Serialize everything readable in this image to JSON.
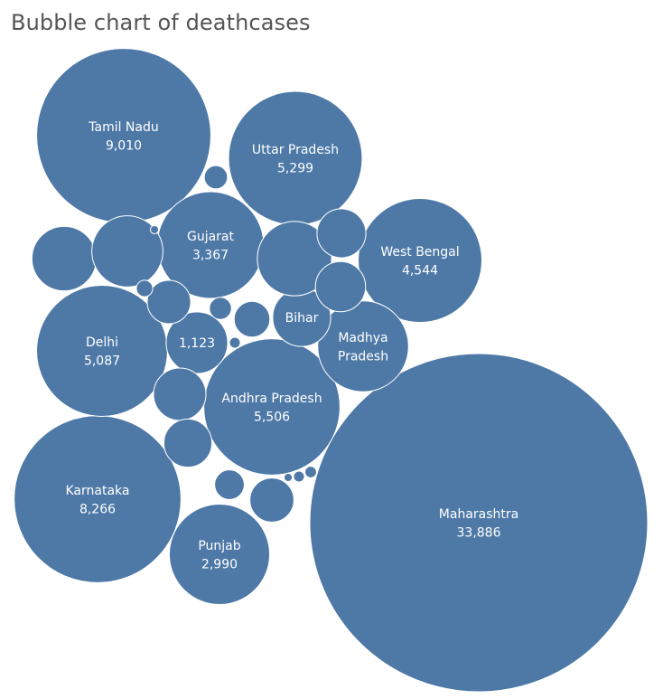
{
  "chart_data": {
    "type": "bubble",
    "title": "Bubble chart of deathcases",
    "measure": "deathcases",
    "color": "#4e79a7",
    "points": [
      {
        "label": "Maharashtra",
        "value": 33886,
        "value_label": "33,886"
      },
      {
        "label": "Tamil Nadu",
        "value": 9010,
        "value_label": "9,010"
      },
      {
        "label": "Karnataka",
        "value": 8266,
        "value_label": "8,266"
      },
      {
        "label": "Andhra Pradesh",
        "value": 5506,
        "value_label": "5,506"
      },
      {
        "label": "Uttar Pradesh",
        "value": 5299,
        "value_label": "5,299"
      },
      {
        "label": "Delhi",
        "value": 5087,
        "value_label": "5,087"
      },
      {
        "label": "West Bengal",
        "value": 4544,
        "value_label": "4,544"
      },
      {
        "label": "Gujarat",
        "value": 3367,
        "value_label": "3,367"
      },
      {
        "label": "Punjab",
        "value": 2990,
        "value_label": "2,990"
      },
      {
        "label": "Madhya Pradesh",
        "value": 2450,
        "value_label": ""
      },
      {
        "label": "Bihar",
        "value": 1000,
        "value_label": ""
      },
      {
        "label": "",
        "value": 1123,
        "value_label": "1,123"
      },
      {
        "label": "",
        "value": 1640,
        "value_label": ""
      },
      {
        "label": "",
        "value": 1230,
        "value_label": ""
      },
      {
        "label": "",
        "value": 1500,
        "value_label": ""
      },
      {
        "label": "",
        "value": 815,
        "value_label": ""
      },
      {
        "label": "",
        "value": 745,
        "value_label": ""
      },
      {
        "label": "",
        "value": 710,
        "value_label": ""
      },
      {
        "label": "",
        "value": 685,
        "value_label": ""
      },
      {
        "label": "",
        "value": 575,
        "value_label": ""
      },
      {
        "label": "",
        "value": 560,
        "value_label": ""
      },
      {
        "label": "",
        "value": 380,
        "value_label": ""
      },
      {
        "label": "",
        "value": 260,
        "value_label": ""
      },
      {
        "label": "",
        "value": 160,
        "value_label": ""
      },
      {
        "label": "",
        "value": 145,
        "value_label": ""
      },
      {
        "label": "",
        "value": 80,
        "value_label": ""
      },
      {
        "label": "",
        "value": 40,
        "value_label": ""
      },
      {
        "label": "",
        "value": 35,
        "value_label": ""
      },
      {
        "label": "",
        "value": 35,
        "value_label": ""
      },
      {
        "label": "",
        "value": 20,
        "value_label": ""
      },
      {
        "label": "",
        "value": 20,
        "value_label": ""
      }
    ]
  }
}
